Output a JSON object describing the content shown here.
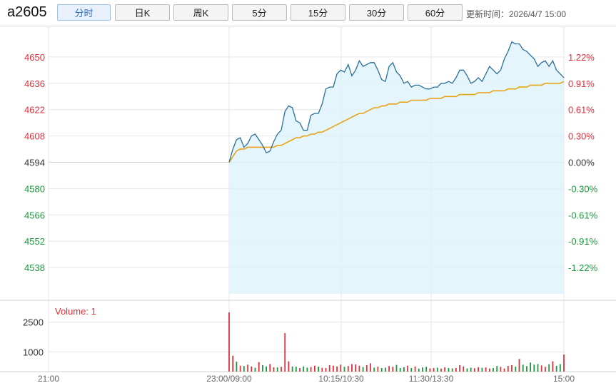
{
  "header": {
    "symbol": "a2605",
    "tabs": [
      {
        "label": "分时",
        "active": true
      },
      {
        "label": "日K",
        "active": false
      },
      {
        "label": "周K",
        "active": false
      },
      {
        "label": "5分",
        "active": false
      },
      {
        "label": "15分",
        "active": false
      },
      {
        "label": "30分",
        "active": false
      },
      {
        "label": "60分",
        "active": false
      }
    ],
    "updated": "更新时间：2026/4/7 15:00"
  },
  "colors": {
    "price_line": "#2a6f97",
    "avg_line": "#e8a317",
    "up": "#e0303a",
    "down": "#1a9a3c",
    "grid": "#e6e6e6",
    "area_fill": "#dff3fb"
  },
  "chart_data": {
    "type": "line",
    "y_left_ticks": [
      "4650",
      "4636",
      "4622",
      "4608",
      "4594",
      "4580",
      "4566",
      "4552",
      "4538"
    ],
    "y_right_ticks": [
      "1.22%",
      "0.91%",
      "0.61%",
      "0.30%",
      "0.00%",
      "-0.30%",
      "-0.61%",
      "-0.91%",
      "-1.22%"
    ],
    "ylim": [
      4524,
      4664
    ],
    "base_price": 4594,
    "x_labels": [
      "21:00",
      "23:00/09:00",
      "10:15/10:30",
      "11:30/13:30",
      "15:00"
    ],
    "price": [
      4594,
      4601,
      4606,
      4607,
      4602,
      4604,
      4608,
      4609,
      4606,
      4603,
      4599,
      4600,
      4605,
      4609,
      4611,
      4621,
      4624,
      4623,
      4616,
      4615,
      4611,
      4611,
      4619,
      4620,
      4620,
      4625,
      4633,
      4634,
      4634,
      4641,
      4643,
      4642,
      4646,
      4640,
      4643,
      4648,
      4645,
      4646,
      4647,
      4647,
      4643,
      4638,
      4637,
      4645,
      4647,
      4642,
      4640,
      4636,
      4637,
      4634,
      4635,
      4635,
      4634,
      4633,
      4633,
      4634,
      4634,
      4636,
      4636,
      4637,
      4636,
      4639,
      4643,
      4643,
      4640,
      4636,
      4637,
      4639,
      4637,
      4641,
      4645,
      4643,
      4641,
      4643,
      4649,
      4653,
      4658,
      4657,
      4657,
      4654,
      4653,
      4651,
      4649,
      4645,
      4647,
      4648,
      4645,
      4648,
      4643,
      4641,
      4639
    ],
    "avg": [
      4594,
      4597,
      4600,
      4601,
      4601,
      4602,
      4602,
      4602,
      4602,
      4602,
      4602,
      4602,
      4602,
      4603,
      4603,
      4604,
      4605,
      4606,
      4607,
      4607,
      4608,
      4608,
      4609,
      4609,
      4610,
      4610,
      4611,
      4612,
      4613,
      4614,
      4615,
      4616,
      4617,
      4618,
      4619,
      4620,
      4620,
      4621,
      4622,
      4623,
      4623,
      4624,
      4624,
      4625,
      4625,
      4625,
      4626,
      4626,
      4626,
      4627,
      4627,
      4627,
      4627,
      4627,
      4628,
      4628,
      4628,
      4628,
      4629,
      4629,
      4629,
      4629,
      4630,
      4630,
      4630,
      4630,
      4630,
      4631,
      4631,
      4631,
      4631,
      4632,
      4632,
      4632,
      4632,
      4633,
      4633,
      4633,
      4634,
      4634,
      4634,
      4635,
      4635,
      4635,
      4635,
      4636,
      4636,
      4636,
      4636,
      4636,
      4637
    ],
    "volume_label": "Volume: 1",
    "volume_ticks": [
      "2500",
      "1000"
    ],
    "volume_ylim": [
      0,
      3500
    ],
    "volume": [
      3000,
      800,
      500,
      300,
      280,
      350,
      260,
      200,
      480,
      330,
      260,
      380,
      220,
      210,
      240,
      1950,
      520,
      260,
      250,
      180,
      260,
      200,
      230,
      300,
      250,
      190,
      180,
      330,
      300,
      260,
      350,
      240,
      280,
      380,
      360,
      300,
      230,
      320,
      420,
      200,
      250,
      180,
      200,
      280,
      240,
      340,
      180,
      220,
      300,
      180,
      260,
      150,
      210,
      240,
      160,
      180,
      200,
      150,
      220,
      180,
      160,
      180,
      330,
      260,
      160,
      200,
      170,
      220,
      190,
      210,
      160,
      180,
      280,
      240,
      160,
      290,
      330,
      250,
      640,
      350,
      280,
      460,
      350,
      380,
      310,
      240,
      370,
      520,
      290,
      380,
      860
    ],
    "volume_up": [
      1,
      1,
      0,
      1,
      0,
      1,
      1,
      0,
      1,
      0,
      0,
      1,
      1,
      0,
      1,
      1,
      1,
      0,
      0,
      1,
      0,
      0,
      1,
      1,
      0,
      1,
      1,
      1,
      1,
      1,
      1,
      0,
      1,
      1,
      1,
      1,
      0,
      1,
      1,
      0,
      1,
      0,
      0,
      1,
      1,
      0,
      0,
      0,
      1,
      0,
      1,
      0,
      0,
      0,
      1,
      1,
      0,
      1,
      1,
      0,
      0,
      1,
      1,
      1,
      0,
      0,
      1,
      1,
      0,
      1,
      1,
      0,
      0,
      1,
      1,
      1,
      1,
      0,
      1,
      0,
      0,
      0,
      0,
      0,
      1,
      1,
      0,
      1,
      0,
      0,
      1
    ]
  }
}
